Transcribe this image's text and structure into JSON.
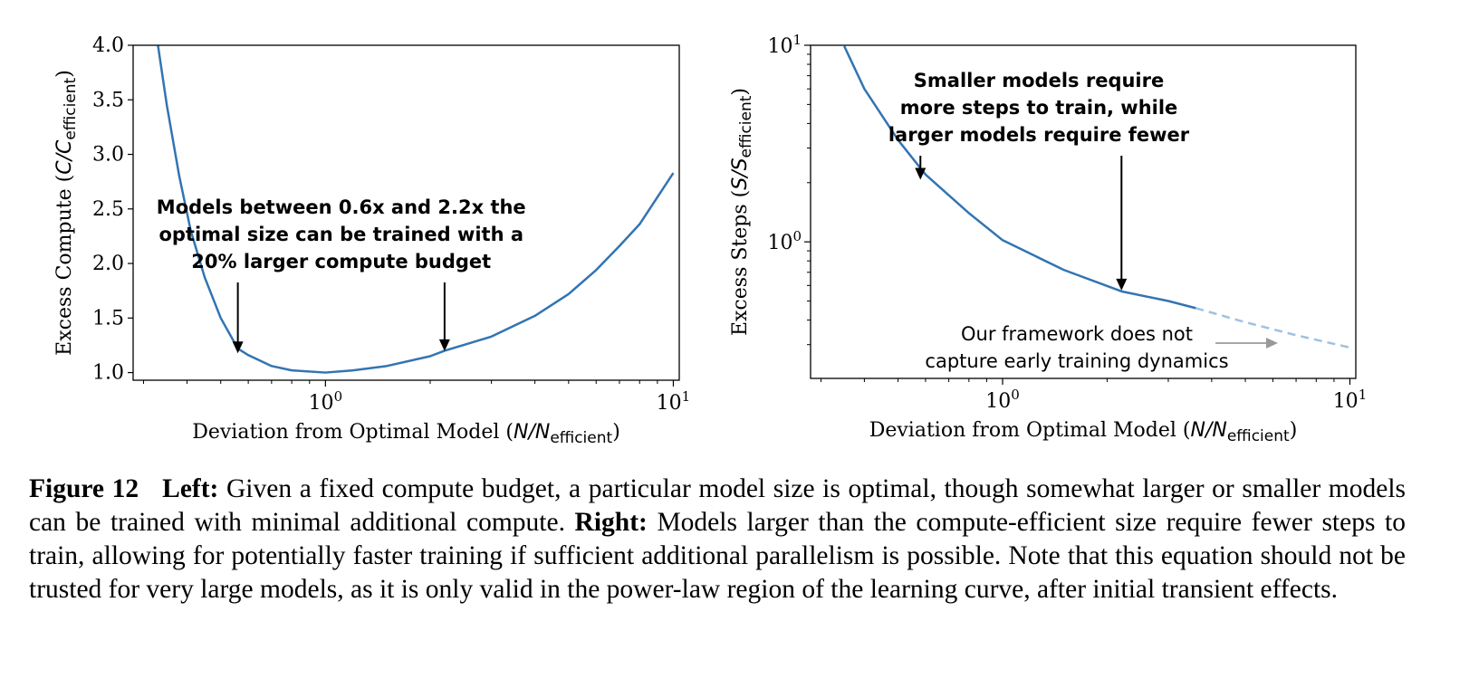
{
  "chart_data": [
    {
      "type": "line",
      "panel": "left",
      "xlabel_prefix": "Deviation from Optimal Model (",
      "xlabel_var": "N/N",
      "xlabel_sub": "efficient",
      "xlabel_suffix": ")",
      "ylabel_prefix": "Excess Compute (",
      "ylabel_var": "C/C",
      "ylabel_sub": "efficient",
      "ylabel_suffix": ")",
      "xscale": "log",
      "xlim": [
        0.28,
        10.4
      ],
      "ylim": [
        0.93,
        4.0
      ],
      "xtick_labels": [
        {
          "value": 1,
          "base": "10",
          "exp": "0"
        },
        {
          "value": 10,
          "base": "10",
          "exp": "1"
        }
      ],
      "ytick_labels": [
        "1.0",
        "1.5",
        "2.0",
        "2.5",
        "3.0",
        "3.5",
        "4.0"
      ],
      "ytick_values": [
        1.0,
        1.5,
        2.0,
        2.5,
        3.0,
        3.5,
        4.0
      ],
      "series": [
        {
          "color": "#3274b3",
          "x": [
            0.33,
            0.35,
            0.38,
            0.41,
            0.45,
            0.5,
            0.56,
            0.6,
            0.7,
            0.8,
            1.0,
            1.2,
            1.5,
            2.0,
            2.2,
            3.0,
            4.0,
            5.0,
            6.0,
            7.0,
            8.0,
            10.0
          ],
          "y": [
            4.0,
            3.45,
            2.8,
            2.3,
            1.87,
            1.5,
            1.22,
            1.16,
            1.06,
            1.02,
            1.0,
            1.02,
            1.06,
            1.15,
            1.2,
            1.33,
            1.52,
            1.72,
            1.94,
            2.16,
            2.36,
            2.83
          ]
        }
      ],
      "annotations": [
        {
          "lines": [
            "Models between 0.6x and 2.2x the",
            "optimal size can be trained with a",
            "20% larger compute budget"
          ]
        }
      ],
      "arrow_targets": [
        {
          "x": 0.56,
          "y": 1.16
        },
        {
          "x": 2.2,
          "y": 1.18
        }
      ]
    },
    {
      "type": "line",
      "panel": "right",
      "xlabel_prefix": "Deviation from Optimal Model (",
      "xlabel_var": "N/N",
      "xlabel_sub": "efficient",
      "xlabel_suffix": ")",
      "ylabel_prefix": "Excess Steps (",
      "ylabel_var": "S/S",
      "ylabel_sub": "efficient",
      "ylabel_suffix": ")",
      "xscale": "log",
      "yscale": "log",
      "xlim": [
        0.28,
        10.4
      ],
      "ylim": [
        0.202,
        10
      ],
      "xtick_labels": [
        {
          "value": 1,
          "base": "10",
          "exp": "0"
        },
        {
          "value": 10,
          "base": "10",
          "exp": "1"
        }
      ],
      "ytick_labels": [
        {
          "value": 1,
          "base": "10",
          "exp": "0"
        },
        {
          "value": 10,
          "base": "10",
          "exp": "1"
        }
      ],
      "series": [
        {
          "color": "#3274b3",
          "style": "solid",
          "x": [
            0.35,
            0.4,
            0.5,
            0.6,
            0.8,
            1.0,
            1.5,
            2.2,
            3.0,
            3.6
          ],
          "y": [
            9.9,
            6.0,
            3.3,
            2.2,
            1.4,
            1.02,
            0.72,
            0.56,
            0.5,
            0.46
          ]
        },
        {
          "color": "#9fc1e0",
          "style": "dashed",
          "x": [
            3.6,
            5.0,
            7.0,
            10.0
          ],
          "y": [
            0.46,
            0.39,
            0.335,
            0.29
          ]
        }
      ],
      "annotations": [
        {
          "lines": [
            "Smaller models require",
            "more steps to train, while",
            "larger models require fewer"
          ],
          "bold": true
        },
        {
          "lines": [
            "Our framework does not",
            "capture early training dynamics"
          ],
          "bold": false
        }
      ],
      "arrow_targets": [
        {
          "x": 0.58,
          "y": 2.05
        },
        {
          "x": 2.2,
          "y": 0.56
        }
      ]
    }
  ],
  "caption": {
    "figure_label": "Figure 12",
    "left_label": "Left:",
    "left_text": " Given a fixed compute budget, a particular model size is optimal, though somewhat larger or smaller models can be trained with minimal additional compute. ",
    "right_label": "Right:",
    "right_text": " Models larger than the compute-efficient size require fewer steps to train, allowing for potentially faster training if sufficient additional parallelism is possible. Note that this equation should not be trusted for very large models, as it is only valid in the power-law region of the learning curve, after initial transient effects."
  }
}
